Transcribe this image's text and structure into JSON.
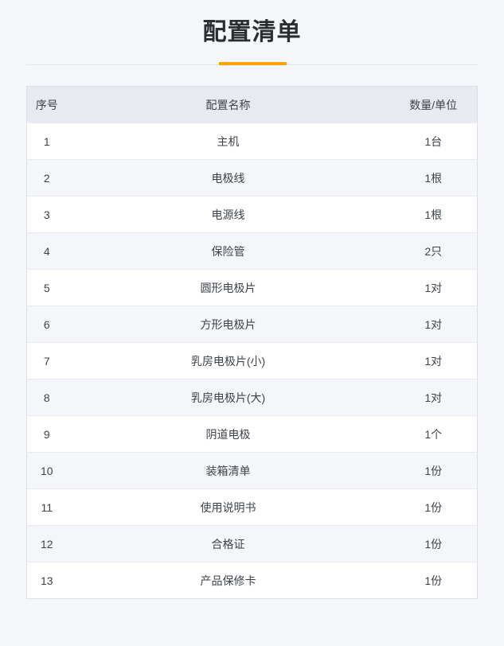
{
  "colors": {
    "accent": "#ffa200"
  },
  "header": {
    "title": "配置清单"
  },
  "table": {
    "columns": [
      {
        "key": "index",
        "label": "序号"
      },
      {
        "key": "name",
        "label": "配置名称"
      },
      {
        "key": "qty",
        "label": "数量/单位"
      }
    ],
    "rows": [
      {
        "index": "1",
        "name": "主机",
        "qty": "1台"
      },
      {
        "index": "2",
        "name": "电极线",
        "qty": "1根"
      },
      {
        "index": "3",
        "name": "电源线",
        "qty": "1根"
      },
      {
        "index": "4",
        "name": "保险管",
        "qty": "2只"
      },
      {
        "index": "5",
        "name": "圆形电极片",
        "qty": "1对"
      },
      {
        "index": "6",
        "name": "方形电极片",
        "qty": "1对"
      },
      {
        "index": "7",
        "name": "乳房电极片(小)",
        "qty": "1对"
      },
      {
        "index": "8",
        "name": "乳房电极片(大)",
        "qty": "1对"
      },
      {
        "index": "9",
        "name": "阴道电极",
        "qty": "1个"
      },
      {
        "index": "10",
        "name": "装箱清单",
        "qty": "1份"
      },
      {
        "index": "11",
        "name": "使用说明书",
        "qty": "1份"
      },
      {
        "index": "12",
        "name": "合格证",
        "qty": "1份"
      },
      {
        "index": "13",
        "name": "产品保修卡",
        "qty": "1份"
      }
    ]
  }
}
